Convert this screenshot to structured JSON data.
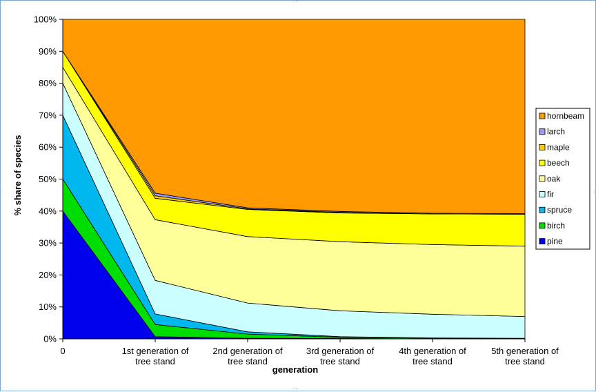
{
  "chart_data": {
    "type": "area",
    "stacked": "percent",
    "title": "",
    "xlabel": "generation",
    "ylabel": "% share of species",
    "ylim": [
      0,
      100
    ],
    "yticks": [
      "0%",
      "10%",
      "20%",
      "30%",
      "40%",
      "50%",
      "60%",
      "70%",
      "80%",
      "90%",
      "100%"
    ],
    "categories": [
      [
        "0"
      ],
      [
        "1st generation of",
        "tree stand"
      ],
      [
        "2nd generation of",
        "tree stand"
      ],
      [
        "3rd generation of",
        "tree stand"
      ],
      [
        "4th generation of",
        "tree stand"
      ],
      [
        "5th generation of",
        "tree stand"
      ]
    ],
    "grid": false,
    "legend_position": "right",
    "series": [
      {
        "name": "pine",
        "color": "#0000ee",
        "values": [
          40,
          0.7,
          0.2,
          0.1,
          0.0,
          0.0
        ]
      },
      {
        "name": "birch",
        "color": "#00dd00",
        "values": [
          10,
          3.8,
          1.3,
          0.4,
          0.2,
          0.1
        ]
      },
      {
        "name": "spruce",
        "color": "#00b8ee",
        "values": [
          20,
          3.3,
          0.7,
          0.2,
          0.1,
          0.1
        ]
      },
      {
        "name": "fir",
        "color": "#ccffff",
        "values": [
          10,
          10.5,
          9.0,
          8.1,
          7.4,
          6.8
        ]
      },
      {
        "name": "oak",
        "color": "#ffff99",
        "values": [
          5,
          19.0,
          20.8,
          21.6,
          21.8,
          22.0
        ]
      },
      {
        "name": "beech",
        "color": "#ffff00",
        "values": [
          5,
          6.7,
          8.5,
          9.0,
          9.6,
          10.0
        ]
      },
      {
        "name": "maple",
        "color": "#ffcc00",
        "values": [
          0,
          0.8,
          0.2,
          0.2,
          0.0,
          0.0
        ]
      },
      {
        "name": "larch",
        "color": "#9999ff",
        "values": [
          0,
          0.8,
          0.3,
          0.3,
          0.2,
          0.2
        ]
      },
      {
        "name": "hornbeam",
        "color": "#ff9900",
        "values": [
          10,
          54.4,
          59.0,
          60.1,
          60.7,
          60.8
        ]
      }
    ]
  }
}
